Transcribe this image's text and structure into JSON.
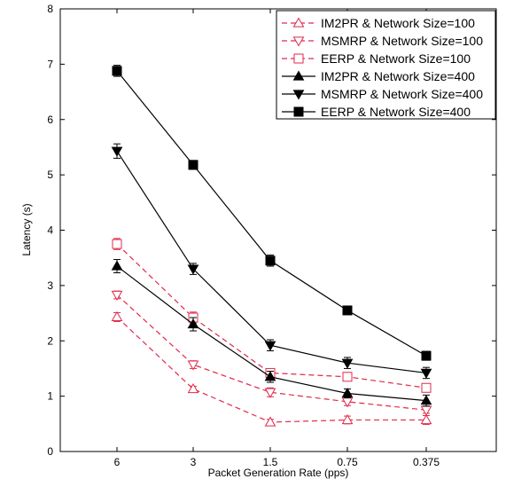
{
  "chart_data": {
    "type": "line",
    "xlabel": "Packet Generation Rate (pps)",
    "ylabel": "Latency (s)",
    "categories": [
      "6",
      "3",
      "1.5",
      "0.75",
      "0.375"
    ],
    "ylim": [
      0,
      8
    ],
    "yticks": [
      "0",
      "1",
      "2",
      "3",
      "4",
      "5",
      "6",
      "7",
      "8"
    ],
    "grid": false,
    "legend_position": "top-right",
    "series": [
      {
        "name": "IM2PR & Network Size=100",
        "values": [
          2.43,
          1.13,
          0.53,
          0.57,
          0.57
        ],
        "errors": [
          0.08,
          0.05,
          0.05,
          0.07,
          0.08
        ],
        "marker": "triangle-up",
        "color": "#e0294a",
        "dashed": true,
        "filled": false
      },
      {
        "name": "MSMRP & Network Size=100",
        "values": [
          2.83,
          1.57,
          1.07,
          0.9,
          0.75
        ],
        "errors": [
          0.07,
          0.07,
          0.08,
          0.07,
          0.06
        ],
        "marker": "triangle-down",
        "color": "#e0294a",
        "dashed": true,
        "filled": false
      },
      {
        "name": "EERP & Network Size=100",
        "values": [
          3.75,
          2.42,
          1.42,
          1.35,
          1.15
        ],
        "errors": [
          0.1,
          0.1,
          0.07,
          0.06,
          0.07
        ],
        "marker": "square",
        "color": "#e0294a",
        "dashed": true,
        "filled": false
      },
      {
        "name": "IM2PR & Network Size=400",
        "values": [
          3.35,
          2.3,
          1.35,
          1.05,
          0.92
        ],
        "errors": [
          0.12,
          0.12,
          0.1,
          0.08,
          0.1
        ],
        "marker": "triangle-up",
        "color": "#000000",
        "dashed": false,
        "filled": true
      },
      {
        "name": "MSMRP & Network Size=400",
        "values": [
          5.43,
          3.3,
          1.92,
          1.6,
          1.42
        ],
        "errors": [
          0.13,
          0.1,
          0.1,
          0.1,
          0.1
        ],
        "marker": "triangle-down",
        "color": "#000000",
        "dashed": false,
        "filled": true
      },
      {
        "name": "EERP & Network Size=400",
        "values": [
          6.88,
          5.18,
          3.45,
          2.55,
          1.73
        ],
        "errors": [
          0.1,
          0.08,
          0.1,
          0.06,
          0.08
        ],
        "marker": "square",
        "color": "#000000",
        "dashed": false,
        "filled": true
      }
    ]
  }
}
